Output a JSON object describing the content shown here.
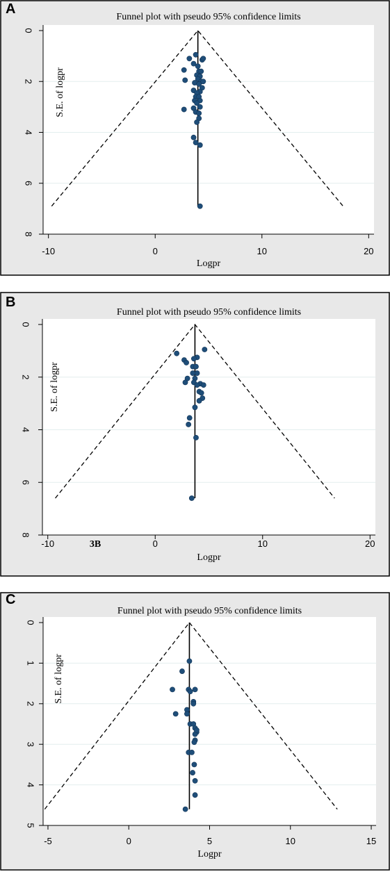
{
  "chart_data": [
    {
      "panel_letter": "A",
      "type": "scatter",
      "title": "Funnel plot with pseudo 95% confidence limits",
      "xlabel": "Logpr",
      "ylabel": "S.E. of logpr",
      "xticks": [
        "-10",
        "0",
        "10",
        "20"
      ],
      "yticks": [
        "0",
        "2",
        "4",
        "6",
        "8"
      ],
      "xlim": [
        -10.5,
        20.5
      ],
      "ylim": [
        0,
        8
      ],
      "y_reversed": true,
      "grid": true,
      "pooled_estimate": 4.0,
      "funnel": {
        "apex": [
          4.0,
          0
        ],
        "left_end": [
          -9.7,
          6.9
        ],
        "right_end": [
          17.6,
          6.9
        ]
      },
      "annotation": "",
      "points": [
        [
          3.8,
          0.95
        ],
        [
          4.4,
          1.15
        ],
        [
          4.5,
          1.1
        ],
        [
          3.2,
          1.1
        ],
        [
          3.6,
          1.3
        ],
        [
          4.0,
          1.4
        ],
        [
          2.7,
          1.55
        ],
        [
          4.1,
          1.6
        ],
        [
          4.3,
          1.6
        ],
        [
          3.9,
          1.75
        ],
        [
          4.2,
          1.8
        ],
        [
          2.8,
          1.95
        ],
        [
          4.0,
          1.9
        ],
        [
          4.3,
          2.0
        ],
        [
          4.5,
          2.0
        ],
        [
          3.7,
          2.05
        ],
        [
          4.1,
          2.1
        ],
        [
          4.4,
          2.25
        ],
        [
          3.6,
          2.35
        ],
        [
          4.2,
          2.4
        ],
        [
          3.9,
          2.45
        ],
        [
          3.8,
          2.6
        ],
        [
          4.1,
          2.6
        ],
        [
          3.7,
          2.75
        ],
        [
          4.2,
          2.75
        ],
        [
          3.9,
          2.85
        ],
        [
          4.2,
          3.0
        ],
        [
          3.6,
          3.05
        ],
        [
          2.7,
          3.1
        ],
        [
          3.8,
          3.2
        ],
        [
          4.1,
          3.25
        ],
        [
          4.1,
          3.45
        ],
        [
          3.9,
          3.6
        ],
        [
          3.6,
          4.2
        ],
        [
          3.8,
          4.4
        ],
        [
          4.2,
          4.5
        ],
        [
          4.2,
          6.9
        ]
      ]
    },
    {
      "panel_letter": "B",
      "type": "scatter",
      "title": "Funnel plot with pseudo 95% confidence limits",
      "xlabel": "Logpr",
      "ylabel": "S.E. of logpr",
      "xticks": [
        "-10",
        "0",
        "10",
        "20"
      ],
      "yticks": [
        "0",
        "2",
        "4",
        "6",
        "8"
      ],
      "xlim": [
        -10.5,
        20.5
      ],
      "ylim": [
        0,
        8
      ],
      "y_reversed": true,
      "grid": true,
      "pooled_estimate": 3.7,
      "funnel": {
        "apex": [
          3.7,
          0
        ],
        "left_end": [
          -9.3,
          6.6
        ],
        "right_end": [
          16.7,
          6.6
        ]
      },
      "annotation": "3B",
      "points": [
        [
          4.6,
          0.95
        ],
        [
          2.0,
          1.1
        ],
        [
          3.9,
          1.25
        ],
        [
          2.7,
          1.35
        ],
        [
          3.6,
          1.3
        ],
        [
          2.9,
          1.45
        ],
        [
          3.5,
          1.6
        ],
        [
          3.8,
          1.6
        ],
        [
          3.9,
          1.85
        ],
        [
          3.5,
          1.85
        ],
        [
          3.0,
          2.05
        ],
        [
          3.7,
          2.05
        ],
        [
          2.8,
          2.2
        ],
        [
          3.6,
          2.2
        ],
        [
          4.2,
          2.25
        ],
        [
          4.5,
          2.3
        ],
        [
          3.9,
          2.3
        ],
        [
          4.1,
          2.55
        ],
        [
          4.3,
          2.6
        ],
        [
          4.4,
          2.8
        ],
        [
          4.1,
          2.9
        ],
        [
          3.7,
          3.15
        ],
        [
          3.2,
          3.55
        ],
        [
          3.1,
          3.8
        ],
        [
          3.8,
          4.3
        ],
        [
          3.4,
          6.6
        ]
      ]
    },
    {
      "panel_letter": "C",
      "type": "scatter",
      "title": "Funnel plot with pseudo 95% confidence limits",
      "xlabel": "Logpr",
      "ylabel": "S.E. of logpr",
      "xticks": [
        "-5",
        "0",
        "5",
        "10",
        "15"
      ],
      "yticks": [
        "0",
        "1",
        "2",
        "3",
        "4",
        "5"
      ],
      "xlim": [
        -5.3,
        15.3
      ],
      "ylim": [
        0,
        5
      ],
      "y_reversed": true,
      "grid": true,
      "pooled_estimate": 3.75,
      "funnel": {
        "apex": [
          3.75,
          0
        ],
        "left_end": [
          -5.2,
          4.6
        ],
        "right_end": [
          12.9,
          4.6
        ]
      },
      "annotation": "",
      "points": [
        [
          3.75,
          0.95
        ],
        [
          3.3,
          1.2
        ],
        [
          3.7,
          1.65
        ],
        [
          3.8,
          1.7
        ],
        [
          4.1,
          1.65
        ],
        [
          2.7,
          1.65
        ],
        [
          4.0,
          1.95
        ],
        [
          4.0,
          2.0
        ],
        [
          3.6,
          2.15
        ],
        [
          3.6,
          2.25
        ],
        [
          2.9,
          2.25
        ],
        [
          3.8,
          2.5
        ],
        [
          4.0,
          2.5
        ],
        [
          4.1,
          2.6
        ],
        [
          4.2,
          2.7
        ],
        [
          4.1,
          2.75
        ],
        [
          4.2,
          2.65
        ],
        [
          4.1,
          2.9
        ],
        [
          4.05,
          2.95
        ],
        [
          3.7,
          3.2
        ],
        [
          3.9,
          3.2
        ],
        [
          4.05,
          3.5
        ],
        [
          3.95,
          3.7
        ],
        [
          4.1,
          3.9
        ],
        [
          4.1,
          4.25
        ],
        [
          3.5,
          4.6
        ]
      ]
    }
  ]
}
